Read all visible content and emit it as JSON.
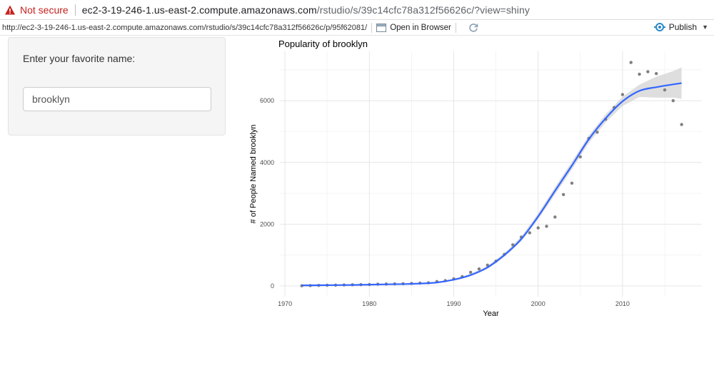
{
  "browser": {
    "security_label": "Not secure",
    "url_host": "ec2-3-19-246-1.us-east-2.compute.amazonaws.com",
    "url_path": "/rstudio/s/39c14cfc78a312f56626c/?view=shiny"
  },
  "viewer": {
    "url": "http://ec2-3-19-246-1.us-east-2.compute.amazonaws.com/rstudio/s/39c14cfc78a312f56626c/p/95f62081/",
    "open_in_browser": "Open in Browser",
    "publish": "Publish"
  },
  "sidebar": {
    "label": "Enter your favorite name:",
    "input_value": "brooklyn"
  },
  "colors": {
    "smooth_line": "#3366ff",
    "confidence_band": "#d3d3d3",
    "points": "#7f7f7f",
    "warning": "#c5221f"
  },
  "chart_data": {
    "type": "scatter",
    "title": "Popularity of brooklyn",
    "xlabel": "Year",
    "ylabel": "# of People Named brooklyn",
    "xlim": [
      1969.4,
      2019.4
    ],
    "ylim": [
      -350,
      7600
    ],
    "x_ticks": [
      1970,
      1980,
      1990,
      2000,
      2010
    ],
    "y_ticks": [
      0,
      2000,
      4000,
      6000
    ],
    "grid": true,
    "series": [
      {
        "kind": "points",
        "x": [
          1972,
          1973,
          1974,
          1975,
          1976,
          1977,
          1978,
          1979,
          1980,
          1981,
          1982,
          1983,
          1984,
          1985,
          1986,
          1987,
          1988,
          1989,
          1990,
          1991,
          1992,
          1993,
          1994,
          1995,
          1996,
          1997,
          1998,
          1999,
          2000,
          2001,
          2002,
          2003,
          2004,
          2005,
          2006,
          2007,
          2008,
          2009,
          2010,
          2011,
          2012,
          2013,
          2014,
          2015,
          2016,
          2017
        ],
        "y": [
          5,
          10,
          15,
          20,
          25,
          30,
          35,
          40,
          45,
          55,
          60,
          65,
          70,
          80,
          90,
          100,
          140,
          170,
          230,
          300,
          440,
          550,
          670,
          800,
          1020,
          1330,
          1580,
          1720,
          1880,
          1930,
          2230,
          2960,
          3330,
          4180,
          4780,
          4980,
          5400,
          5780,
          6200,
          7240,
          6860,
          6940,
          6880,
          6350,
          6000,
          5230
        ]
      },
      {
        "kind": "smooth",
        "x": [
          1972,
          1974,
          1976,
          1978,
          1980,
          1982,
          1984,
          1986,
          1988,
          1990,
          1992,
          1994,
          1996,
          1998,
          2000,
          2002,
          2004,
          2006,
          2008,
          2010,
          2012,
          2014,
          2016,
          2017
        ],
        "y": [
          15,
          20,
          25,
          30,
          40,
          50,
          60,
          75,
          110,
          200,
          350,
          600,
          1000,
          1520,
          2250,
          3080,
          3900,
          4750,
          5430,
          5980,
          6320,
          6440,
          6530,
          6570
        ],
        "band_upper": [
          55,
          50,
          45,
          45,
          55,
          65,
          75,
          90,
          130,
          230,
          390,
          650,
          1060,
          1600,
          2350,
          3200,
          4030,
          4870,
          5560,
          6130,
          6520,
          6780,
          6960,
          7080
        ],
        "band_lower": [
          -25,
          -10,
          5,
          15,
          25,
          35,
          45,
          60,
          90,
          170,
          310,
          550,
          940,
          1440,
          2150,
          2960,
          3770,
          4630,
          5300,
          5830,
          6120,
          6100,
          6100,
          6060
        ]
      }
    ]
  }
}
